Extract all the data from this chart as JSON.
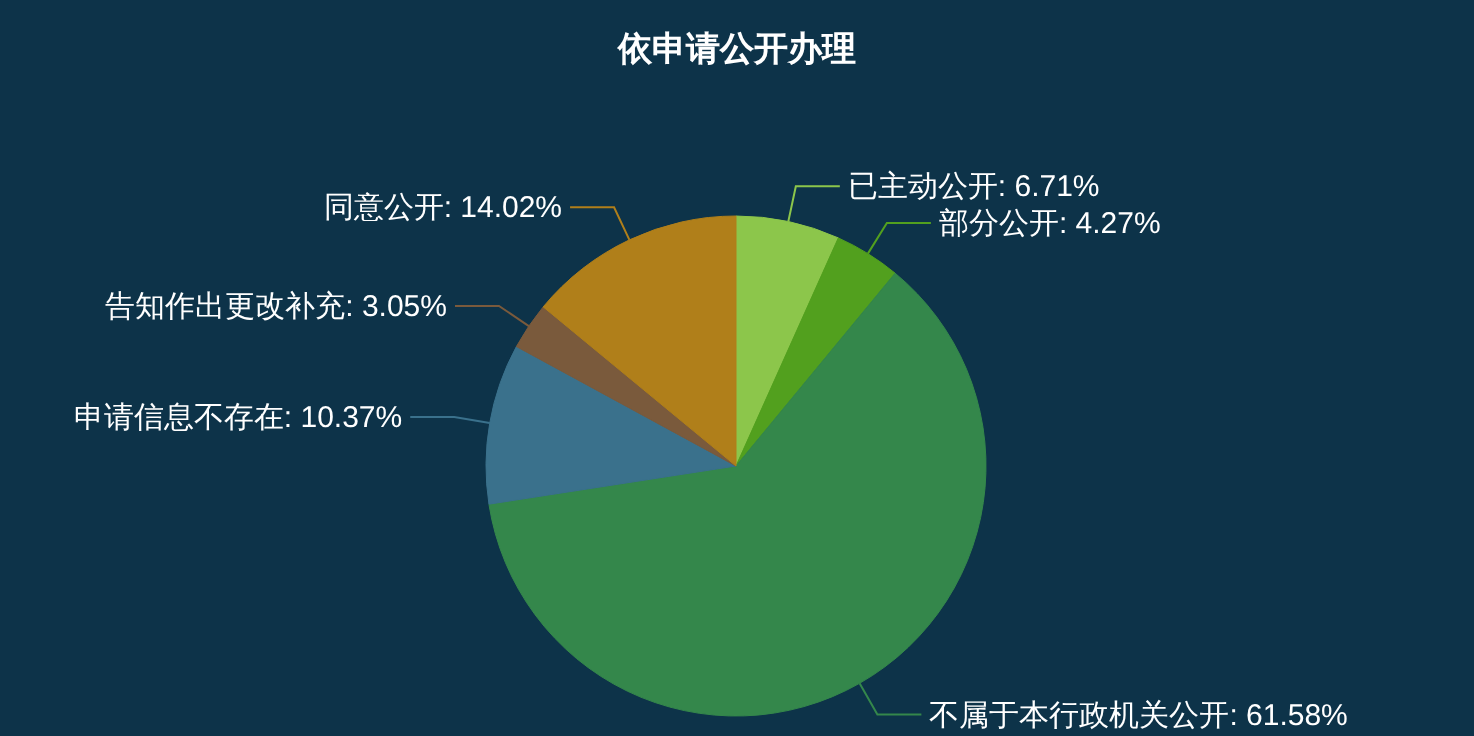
{
  "chart_data": {
    "type": "pie",
    "title": "依申请公开办理",
    "categories": [
      "已主动公开",
      "部分公开",
      "不属于本行政机关公开",
      "申请信息不存在",
      "告知作出更改补充",
      "同意公开"
    ],
    "values": [
      6.71,
      4.27,
      61.58,
      10.37,
      3.05,
      14.02
    ],
    "value_labels": [
      ": 6.71%",
      ": 4.27%",
      ": 61.58%",
      ": 10.37%",
      ": 3.05%",
      ": 14.02%"
    ],
    "colors": [
      "#8cc64b",
      "#52a01e",
      "#34874b",
      "#3a718c",
      "#7a5a3c",
      "#b07f1a"
    ],
    "legend": false
  }
}
